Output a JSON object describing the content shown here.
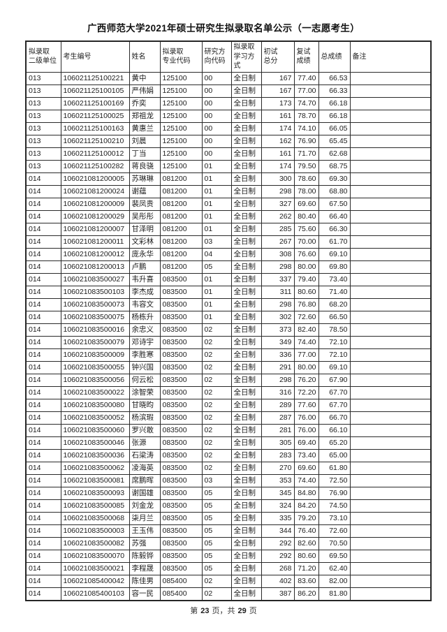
{
  "document": {
    "title": "广西师范大学2021年硕士研究生拟录取名单公示（一志愿考生）",
    "footer": {
      "text_before": "第",
      "page_number": "23",
      "text_middle": "页，共",
      "page_total": "29",
      "text_after": "页"
    }
  },
  "table": {
    "headers": [
      "拟录取\n二级单位",
      "考生编号",
      "姓名",
      "拟录取\n专业代码",
      "研究方\n向代码",
      "拟录取\n学习方式",
      "初试\n总分",
      "复试\n成绩",
      "总成绩",
      "备注"
    ],
    "rows": [
      [
        "013",
        "106021125100221",
        "黄中",
        "125100",
        "00",
        "全日制",
        "167",
        "77.40",
        "66.53",
        ""
      ],
      [
        "013",
        "106021125100105",
        "严伟娟",
        "125100",
        "00",
        "全日制",
        "167",
        "77.00",
        "66.33",
        ""
      ],
      [
        "013",
        "106021125100169",
        "乔奕",
        "125100",
        "00",
        "全日制",
        "173",
        "74.70",
        "66.18",
        ""
      ],
      [
        "013",
        "106021125100025",
        "郑祖龙",
        "125100",
        "00",
        "全日制",
        "161",
        "78.70",
        "66.18",
        ""
      ],
      [
        "013",
        "106021125100163",
        "黄惠兰",
        "125100",
        "00",
        "全日制",
        "174",
        "74.10",
        "66.05",
        ""
      ],
      [
        "013",
        "106021125100210",
        "刘晨",
        "125100",
        "00",
        "全日制",
        "162",
        "76.90",
        "65.45",
        ""
      ],
      [
        "013",
        "106021125100012",
        "丁当",
        "125100",
        "00",
        "全日制",
        "161",
        "71.70",
        "62.68",
        ""
      ],
      [
        "013",
        "106021125100282",
        "蒋良骁",
        "125100",
        "01",
        "全日制",
        "174",
        "79.50",
        "68.75",
        ""
      ],
      [
        "014",
        "106021081200005",
        "苏琳琳",
        "081200",
        "01",
        "全日制",
        "300",
        "78.60",
        "69.30",
        ""
      ],
      [
        "014",
        "106021081200024",
        "谢蕴",
        "081200",
        "01",
        "全日制",
        "298",
        "78.00",
        "68.80",
        ""
      ],
      [
        "014",
        "106021081200009",
        "裴凤贵",
        "081200",
        "01",
        "全日制",
        "327",
        "69.60",
        "67.50",
        ""
      ],
      [
        "014",
        "106021081200029",
        "吴彤彤",
        "081200",
        "01",
        "全日制",
        "262",
        "80.40",
        "66.40",
        ""
      ],
      [
        "014",
        "106021081200007",
        "甘泽明",
        "081200",
        "01",
        "全日制",
        "285",
        "75.60",
        "66.30",
        ""
      ],
      [
        "014",
        "106021081200011",
        "文彩林",
        "081200",
        "03",
        "全日制",
        "267",
        "70.00",
        "61.70",
        ""
      ],
      [
        "014",
        "106021081200012",
        "庞永华",
        "081200",
        "04",
        "全日制",
        "308",
        "76.60",
        "69.10",
        ""
      ],
      [
        "014",
        "106021081200013",
        "卢鹏",
        "081200",
        "05",
        "全日制",
        "298",
        "80.00",
        "69.80",
        ""
      ],
      [
        "014",
        "106021083500027",
        "韦升喜",
        "083500",
        "01",
        "全日制",
        "337",
        "79.40",
        "73.40",
        ""
      ],
      [
        "014",
        "106021083500103",
        "李杰成",
        "083500",
        "01",
        "全日制",
        "311",
        "80.60",
        "71.40",
        ""
      ],
      [
        "014",
        "106021083500073",
        "韦容文",
        "083500",
        "01",
        "全日制",
        "298",
        "76.80",
        "68.20",
        ""
      ],
      [
        "014",
        "106021083500075",
        "杨栋升",
        "083500",
        "01",
        "全日制",
        "302",
        "72.60",
        "66.50",
        ""
      ],
      [
        "014",
        "106021083500016",
        "余忠义",
        "083500",
        "02",
        "全日制",
        "373",
        "82.40",
        "78.50",
        ""
      ],
      [
        "014",
        "106021083500079",
        "邓诗宇",
        "083500",
        "02",
        "全日制",
        "349",
        "74.40",
        "72.10",
        ""
      ],
      [
        "014",
        "106021083500009",
        "李胜寒",
        "083500",
        "02",
        "全日制",
        "336",
        "77.00",
        "72.10",
        ""
      ],
      [
        "014",
        "106021083500055",
        "钟兴国",
        "083500",
        "02",
        "全日制",
        "291",
        "80.00",
        "69.10",
        ""
      ],
      [
        "014",
        "106021083500056",
        "何云松",
        "083500",
        "02",
        "全日制",
        "298",
        "76.20",
        "67.90",
        ""
      ],
      [
        "014",
        "106021083500022",
        "涂智荣",
        "083500",
        "02",
        "全日制",
        "316",
        "72.20",
        "67.70",
        ""
      ],
      [
        "014",
        "106021083500080",
        "甘晓昀",
        "083500",
        "02",
        "全日制",
        "289",
        "77.60",
        "67.70",
        ""
      ],
      [
        "014",
        "106021083500052",
        "杨滨瑕",
        "083500",
        "02",
        "全日制",
        "287",
        "76.00",
        "66.70",
        ""
      ],
      [
        "014",
        "106021083500060",
        "罗兴敢",
        "083500",
        "02",
        "全日制",
        "281",
        "76.00",
        "66.10",
        ""
      ],
      [
        "014",
        "106021083500046",
        "张源",
        "083500",
        "02",
        "全日制",
        "305",
        "69.40",
        "65.20",
        ""
      ],
      [
        "014",
        "106021083500036",
        "石梁涛",
        "083500",
        "02",
        "全日制",
        "283",
        "73.40",
        "65.00",
        ""
      ],
      [
        "014",
        "106021083500062",
        "凌海英",
        "083500",
        "02",
        "全日制",
        "270",
        "69.60",
        "61.80",
        ""
      ],
      [
        "014",
        "106021083500081",
        "席鹏晖",
        "083500",
        "03",
        "全日制",
        "353",
        "74.40",
        "72.50",
        ""
      ],
      [
        "014",
        "106021083500093",
        "谢国雄",
        "083500",
        "05",
        "全日制",
        "345",
        "84.80",
        "76.90",
        ""
      ],
      [
        "014",
        "106021083500085",
        "刘金龙",
        "083500",
        "05",
        "全日制",
        "324",
        "84.20",
        "74.50",
        ""
      ],
      [
        "014",
        "106021083500068",
        "柒月兰",
        "083500",
        "05",
        "全日制",
        "335",
        "79.20",
        "73.10",
        ""
      ],
      [
        "014",
        "106021083500003",
        "王玉伟",
        "083500",
        "05",
        "全日制",
        "344",
        "76.40",
        "72.60",
        ""
      ],
      [
        "014",
        "106021083500082",
        "苏强",
        "083500",
        "05",
        "全日制",
        "292",
        "82.60",
        "70.50",
        ""
      ],
      [
        "014",
        "106021083500070",
        "陈毅铧",
        "083500",
        "05",
        "全日制",
        "292",
        "80.60",
        "69.50",
        ""
      ],
      [
        "014",
        "106021083500021",
        "李程晟",
        "083500",
        "05",
        "全日制",
        "268",
        "71.20",
        "62.40",
        ""
      ],
      [
        "014",
        "106021085400042",
        "陈佳男",
        "085400",
        "02",
        "全日制",
        "402",
        "83.60",
        "82.00",
        ""
      ],
      [
        "014",
        "106021085400103",
        "容一民",
        "085400",
        "02",
        "全日制",
        "387",
        "86.20",
        "81.80",
        ""
      ]
    ]
  },
  "colors": {
    "border": "#2a2a2a",
    "text": "#1c1c1c",
    "study_mode_text": "#8e8e8e",
    "background": "#ffffff"
  }
}
